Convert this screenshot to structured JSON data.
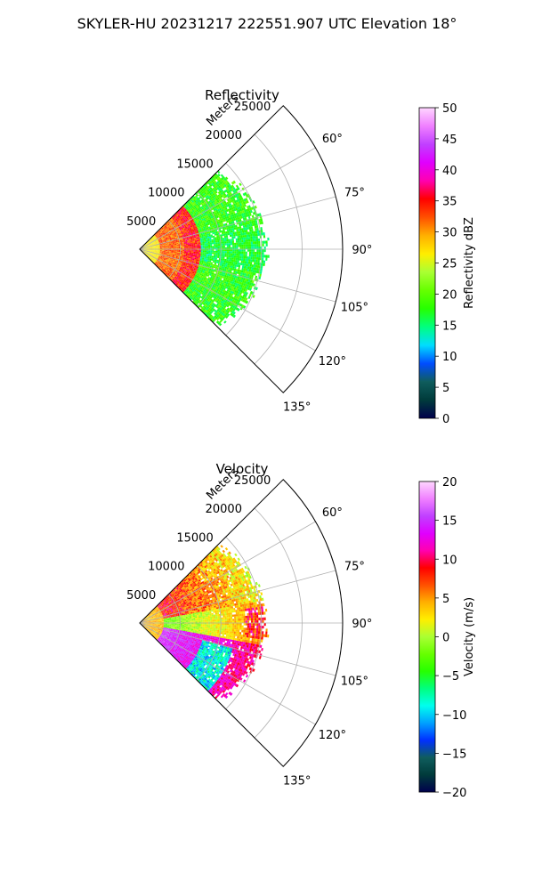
{
  "figure": {
    "suptitle": "SKYLER-HU  20231217  222551.907 UTC Elevation 18°"
  },
  "chart_data": [
    {
      "type": "polar-sector",
      "title": "Reflectivity",
      "radial_label": "Meters",
      "radial_ticks": [
        5000,
        10000,
        15000,
        20000,
        25000
      ],
      "radial_range": [
        0,
        25000
      ],
      "azimuth_range_deg": [
        45,
        135
      ],
      "azimuth_ticks_deg": [
        60,
        75,
        90,
        105,
        120,
        135
      ],
      "azimuth_tick_labels": [
        "60°",
        "75°",
        "90°",
        "105°",
        "120°",
        "135°"
      ],
      "grid": true,
      "data_extent_m": 16000,
      "colorbar": {
        "label": "Reflectivity dBZ",
        "min": 0,
        "max": 50,
        "ticks": [
          0,
          5,
          10,
          15,
          20,
          25,
          30,
          35,
          40,
          45,
          50
        ],
        "colors": [
          "#00004d",
          "#003b3b",
          "#0f5d5d",
          "#004cff",
          "#00ddff",
          "#00ff80",
          "#26ff00",
          "#66ff00",
          "#aaff33",
          "#ffee00",
          "#ffb000",
          "#ff5000",
          "#ff0000",
          "#ff00b0",
          "#e000ff",
          "#c040ff",
          "#f080ff",
          "#ffd6ff"
        ]
      }
    },
    {
      "type": "polar-sector",
      "title": "Velocity",
      "radial_label": "Meters",
      "radial_ticks": [
        5000,
        10000,
        15000,
        20000,
        25000
      ],
      "radial_range": [
        0,
        25000
      ],
      "azimuth_range_deg": [
        45,
        135
      ],
      "azimuth_ticks_deg": [
        60,
        75,
        90,
        105,
        120,
        135
      ],
      "azimuth_tick_labels": [
        "60°",
        "75°",
        "90°",
        "105°",
        "120°",
        "135°"
      ],
      "grid": true,
      "data_extent_m": 16000,
      "colorbar": {
        "label": "Velocity (m/s)",
        "min": -20,
        "max": 20,
        "ticks": [
          -20,
          -15,
          -10,
          -5,
          0,
          5,
          10,
          15,
          20
        ],
        "colors": [
          "#00004d",
          "#003b3b",
          "#0f5d5d",
          "#0030ff",
          "#00a0ff",
          "#00ffee",
          "#00ff80",
          "#26ff00",
          "#66ff00",
          "#aaff33",
          "#ffee00",
          "#ffb000",
          "#ff5000",
          "#ff0000",
          "#ff00b0",
          "#e000ff",
          "#c040ff",
          "#f080ff",
          "#ffd6ff"
        ]
      }
    }
  ]
}
